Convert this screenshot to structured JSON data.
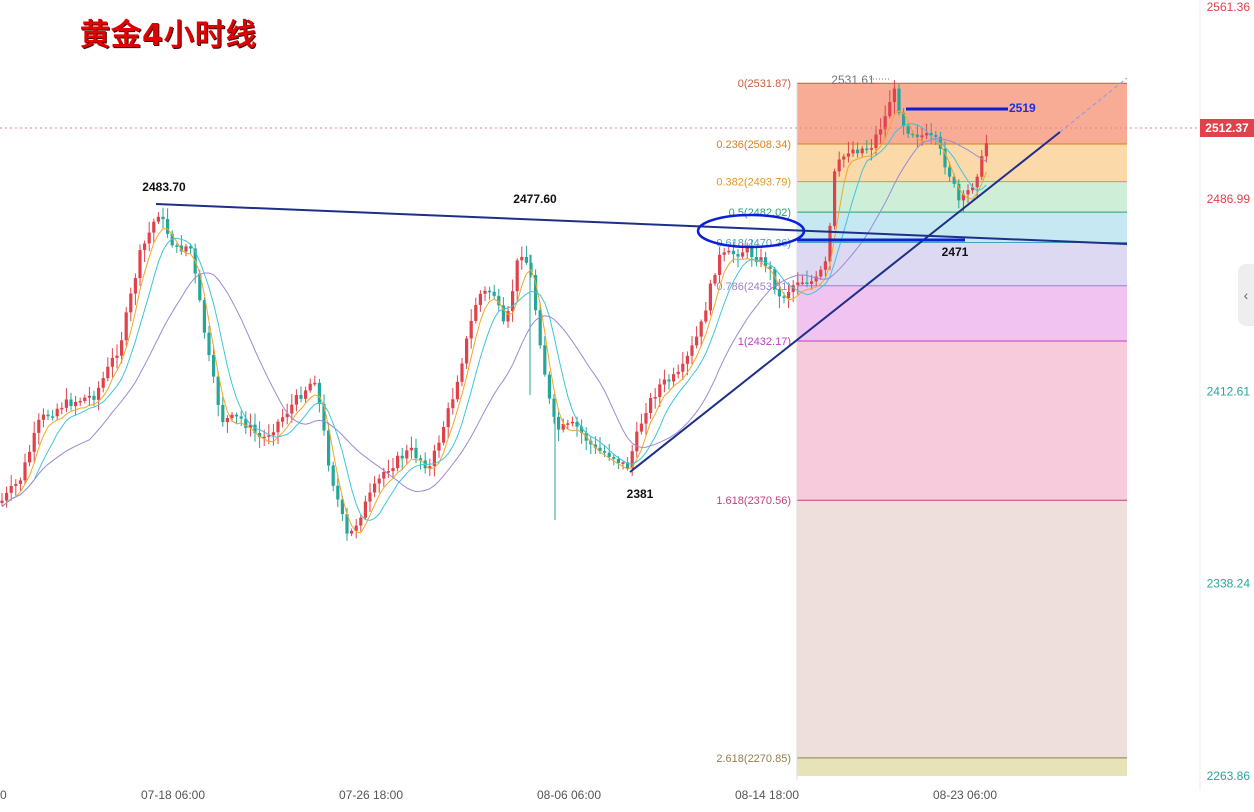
{
  "title": "黄金4小时线",
  "chart_data": {
    "type": "candlestick",
    "title": "黄金4小时线",
    "x_ticks": [
      "07-18 06:00",
      "07-26 18:00",
      "08-06 06:00",
      "08-14 18:00",
      "08-23 06:00"
    ],
    "x_tick_left_partial": "0",
    "y_ticks": [
      "2561.36",
      "2486.99",
      "2412.61",
      "2338.24",
      "2263.86"
    ],
    "current_price": "2512.37",
    "fib_levels": [
      {
        "label": "0(2531.87)",
        "value": 2531.87,
        "color": "#f7a28a"
      },
      {
        "label": "0.236(2508.34)",
        "value": 2508.34,
        "color": "#fcd5a0"
      },
      {
        "label": "0.382(2493.79)",
        "value": 2493.79,
        "color": "#c9ecd3"
      },
      {
        "label": "0.5(2482.02)",
        "value": 2482.02,
        "color": "#bfe6f2"
      },
      {
        "label": "0.618(2470.26)",
        "value": 2470.26,
        "color": "#d9d5f2"
      },
      {
        "label": "0.786(2453.51)",
        "value": 2453.51,
        "color": "#f0bdf0"
      },
      {
        "label": "1(2432.17)",
        "value": 2432.17,
        "color": "#f6c4d8"
      },
      {
        "label": "1.618(2370.56)",
        "value": 2370.56,
        "color": "#ecdcd8"
      },
      {
        "label": "2.618(2270.85)",
        "value": 2270.85,
        "color": "#e4e0b0"
      }
    ],
    "annotations": [
      {
        "text": "2483.70",
        "kind": "swing-high"
      },
      {
        "text": "2477.60",
        "kind": "swing-high"
      },
      {
        "text": "2381",
        "kind": "swing-low"
      },
      {
        "text": "2471",
        "kind": "support"
      },
      {
        "text": "2519",
        "kind": "resistance"
      },
      {
        "text": "2531.61",
        "kind": "high-marker"
      }
    ],
    "legend": "none",
    "grid": false
  }
}
